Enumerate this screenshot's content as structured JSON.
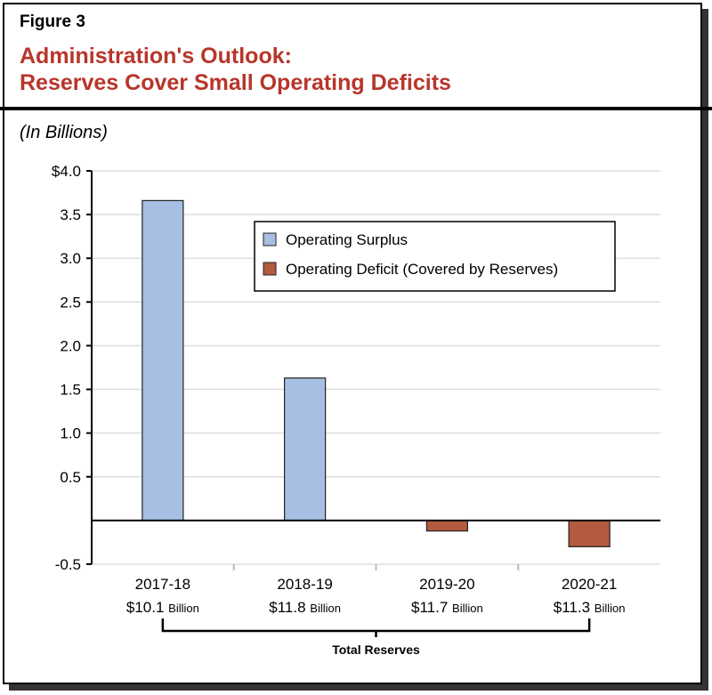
{
  "figure_label": "Figure 3",
  "title_line1": "Administration's Outlook:",
  "title_line2": "Reserves Cover Small Operating Deficits",
  "units": "(In Billions)",
  "chart_data": {
    "type": "bar",
    "categories": [
      "2017-18",
      "2018-19",
      "2019-20",
      "2020-21"
    ],
    "reserves": [
      "$10.1",
      "$11.8",
      "$11.7",
      "$11.3"
    ],
    "reserves_unit": "Billion",
    "reserves_label": "Total Reserves",
    "values": [
      3.66,
      1.63,
      -0.12,
      -0.3
    ],
    "ylim": [
      -0.5,
      4.0
    ],
    "yticks": [
      -0.5,
      0.5,
      1.0,
      1.5,
      2.0,
      2.5,
      3.0,
      3.5,
      4.0
    ],
    "ytick_labels": [
      "-0.5",
      "0.5",
      "1.0",
      "1.5",
      "2.0",
      "2.5",
      "3.0",
      "3.5",
      "$4.0"
    ],
    "grid": true,
    "legend_placement": "top-right",
    "series": [
      {
        "name": "Operating Surplus",
        "color": "#a7bfe3"
      },
      {
        "name": "Operating Deficit (Covered by Reserves)",
        "color": "#b35a40"
      }
    ]
  }
}
